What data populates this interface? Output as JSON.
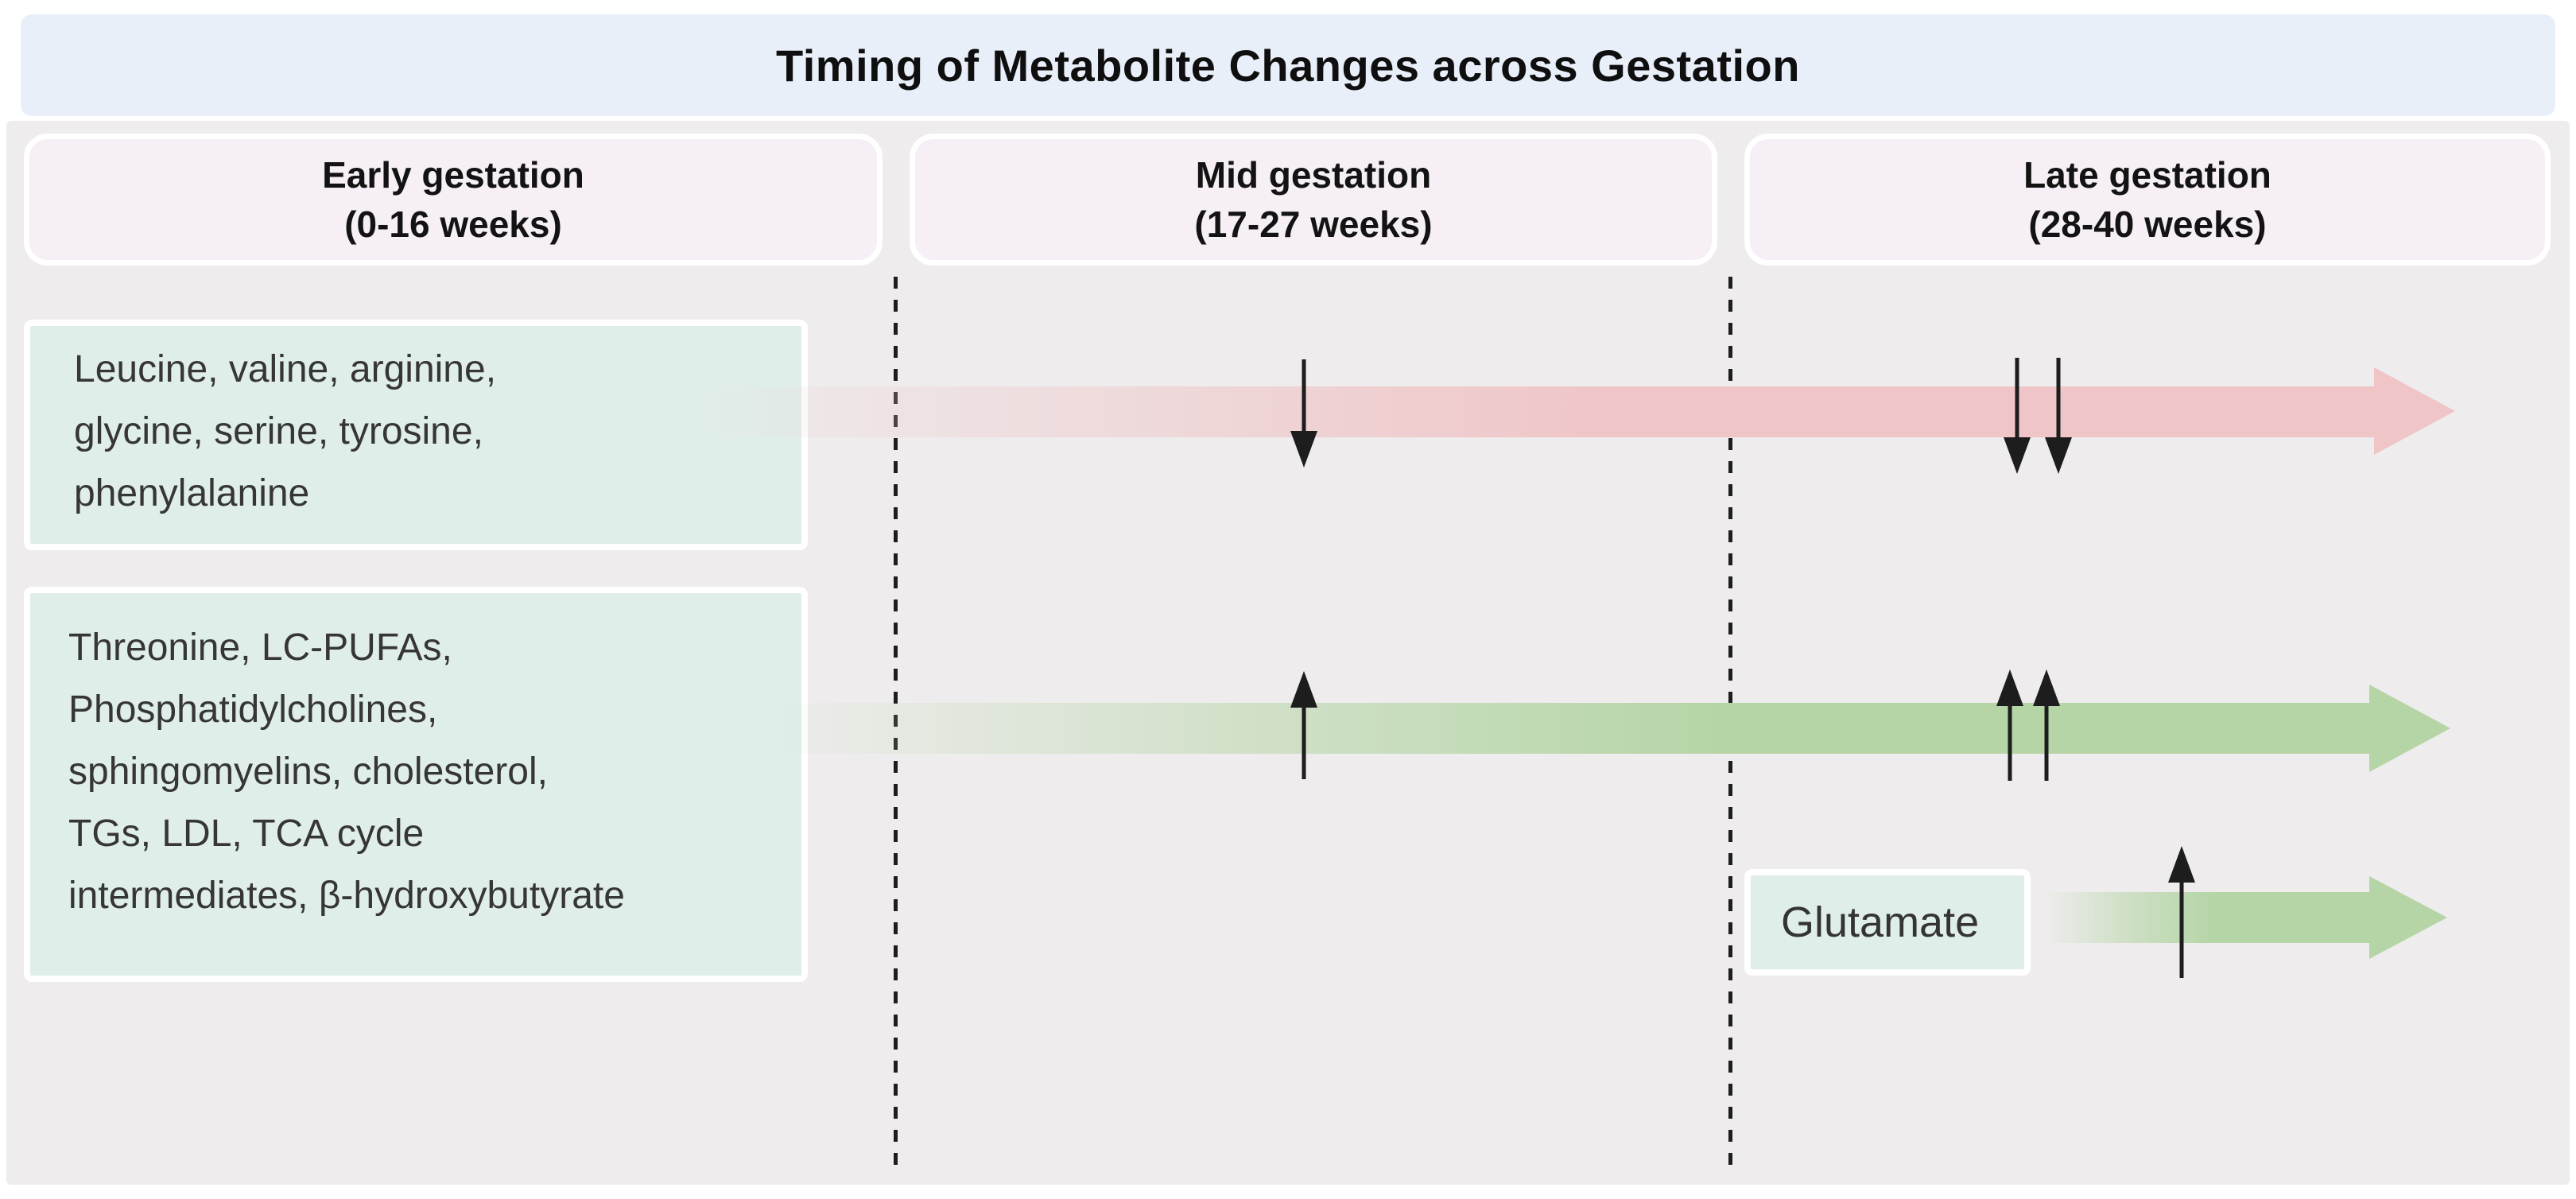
{
  "title": "Timing of Metabolite Changes across Gestation",
  "columns": [
    {
      "id": "early",
      "label": "Early gestation",
      "range": "(0-16 weeks)"
    },
    {
      "id": "mid",
      "label": "Mid gestation",
      "range": "(17-27 weeks)"
    },
    {
      "id": "late",
      "label": "Late gestation",
      "range": "(28-40 weeks)"
    }
  ],
  "rows": [
    {
      "metabolites": "Leucine, valine, arginine,\nglycine, serine, tyrosine,\nphenylalanine",
      "trend": "decrease",
      "band_color": "#efc5c7",
      "markers": [
        {
          "column": "mid",
          "direction": "down",
          "count": 1
        },
        {
          "column": "late",
          "direction": "down",
          "count": 2
        }
      ]
    },
    {
      "metabolites": "Threonine, LC-PUFAs,\nPhosphatidylcholines,\nsphingomyelins, cholesterol,\nTGs, LDL, TCA cycle\nintermediates, β-hydroxybutyrate",
      "trend": "increase",
      "band_color": "#b5d5a6",
      "markers": [
        {
          "column": "mid",
          "direction": "up",
          "count": 1
        },
        {
          "column": "late",
          "direction": "up",
          "count": 2
        }
      ]
    },
    {
      "metabolites": "Glutamate",
      "trend": "increase",
      "band_color": "#b5d5a6",
      "markers": [
        {
          "column": "late",
          "direction": "up",
          "count": 1
        }
      ]
    }
  ],
  "colors": {
    "banner_bg": "#e8eff9",
    "panel_bg": "#eeecec",
    "header_bg": "#f6eff5",
    "metabolite_box_bg": "#e0eeea",
    "decrease_band": "#efc5c7",
    "increase_band": "#b5d5a6",
    "arrow_black": "#1d1d1d",
    "dashed_line": "#1d1d1d"
  }
}
